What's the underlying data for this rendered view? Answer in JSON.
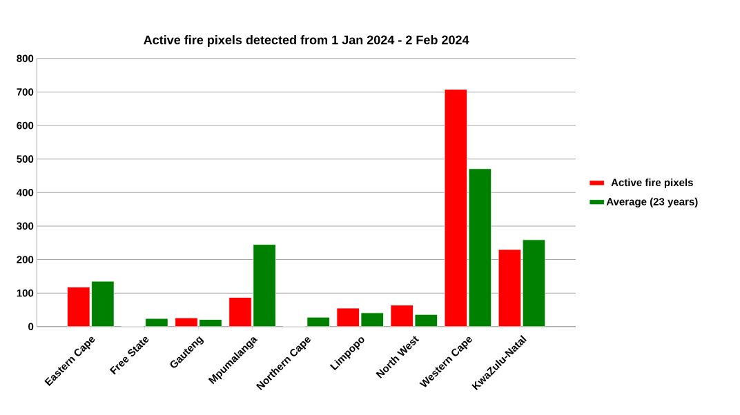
{
  "chart_data": {
    "type": "bar",
    "title": "Active fire pixels detected from 1 Jan 2024 - 2 Feb 2024",
    "categories": [
      "Eastern Cape",
      "Free State",
      "Gauteng",
      "Mpumalanga",
      "Northern Cape",
      "Limpopo",
      "North West",
      "Western Cape",
      "KwaZulu-Natal"
    ],
    "series": [
      {
        "name": "Active fire pixels",
        "color": "#ff0000",
        "values": [
          118,
          0,
          26,
          87,
          0,
          55,
          64,
          708,
          230
        ]
      },
      {
        "name": "Average (23 years)",
        "color": "#008000",
        "values": [
          135,
          24,
          21,
          245,
          28,
          41,
          36,
          471,
          259
        ]
      }
    ],
    "ylim": [
      0,
      800
    ],
    "yticks": [
      0,
      100,
      200,
      300,
      400,
      500,
      600,
      700,
      800
    ],
    "grid": "y",
    "legend": "right"
  }
}
